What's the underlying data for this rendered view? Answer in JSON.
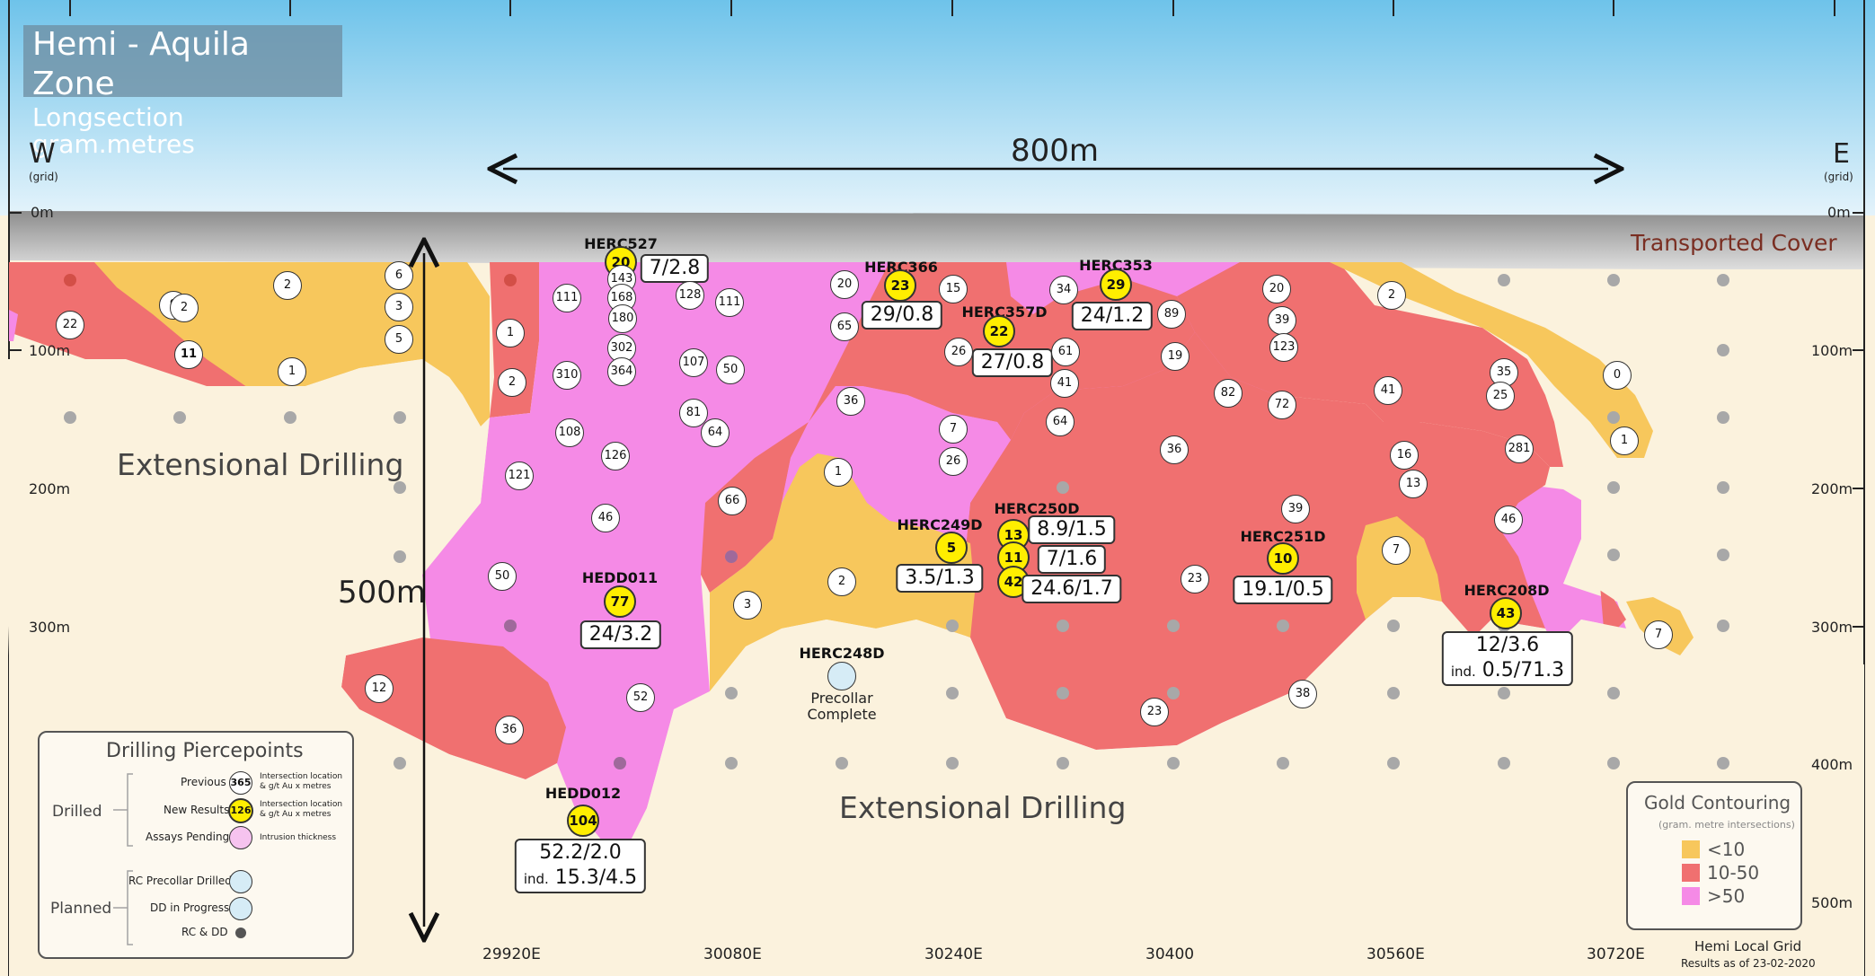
{
  "title": {
    "line1": "Hemi - Aquila Zone",
    "line2": "Longsection gram.metres"
  },
  "west": {
    "letter": "W",
    "sub": "(grid)"
  },
  "east": {
    "letter": "E",
    "sub": "(grid)"
  },
  "scale_horizontal": "800m",
  "scale_vertical": "500m",
  "transported_cover": "Transported Cover",
  "depth_labels": [
    "0m",
    "100m",
    "200m",
    "300m",
    "400m",
    "500m"
  ],
  "easting_labels": [
    "29920E",
    "30080E",
    "30240E",
    "30400",
    "30560E",
    "30720E"
  ],
  "extensional_left": "Extensional Drilling",
  "extensional_bottom": "Extensional Drilling",
  "grid_note": {
    "line1": "Hemi Local Grid",
    "line2": "Results as of 23-02-2020"
  },
  "holes": [
    {
      "name": "HERC527",
      "new": "20",
      "result": "7/2.8"
    },
    {
      "name": "HERC366",
      "new": "23",
      "result": "29/0.8"
    },
    {
      "name": "HERC357D",
      "new": "22",
      "result": "27/0.8"
    },
    {
      "name": "HERC353",
      "new": "29",
      "result": "24/1.2"
    },
    {
      "name": "HERC249D",
      "new": "5",
      "result": "3.5/1.3"
    },
    {
      "name": "HERC250D",
      "new1": "13",
      "new2": "11",
      "new3": "42",
      "result1": "8.9/1.5",
      "result2": "7/1.6",
      "result3": "24.6/1.7"
    },
    {
      "name": "HERC251D",
      "new": "10",
      "result": "19.1/0.5"
    },
    {
      "name": "HERC208D",
      "new": "43",
      "result": "12/3.6",
      "inc_label": "ind.",
      "inc": "0.5/71.3"
    },
    {
      "name": "HEDD011",
      "new": "77",
      "result": "24/3.2"
    },
    {
      "name": "HEDD012",
      "new": "104",
      "result": "52.2/2.0",
      "inc_label": "ind.",
      "inc": "15.3/4.5"
    },
    {
      "name": "HERC248D",
      "status1": "Precollar",
      "status2": "Complete"
    }
  ],
  "previous_values": [
    "22",
    "9",
    "2",
    "11",
    "2",
    "1",
    "6",
    "3",
    "5",
    "1",
    "2",
    "111",
    "143",
    "168",
    "180",
    "302",
    "364",
    "310",
    "108",
    "126",
    "121",
    "46",
    "50",
    "128",
    "111",
    "107",
    "50",
    "81",
    "64",
    "66",
    "3",
    "20",
    "65",
    "15",
    "34",
    "89",
    "26",
    "61",
    "41",
    "36",
    "7",
    "26",
    "1",
    "2",
    "64",
    "19",
    "82",
    "20",
    "39",
    "123",
    "72",
    "36",
    "41",
    "2",
    "35",
    "25",
    "0",
    "1",
    "281",
    "16",
    "13",
    "39",
    "46",
    "7",
    "23",
    "7",
    "12",
    "36",
    "52",
    "23",
    "38"
  ],
  "legend_piercepoints": {
    "title": "Drilling Piercepoints",
    "drilled": "Drilled",
    "planned": "Planned",
    "previous_label": "Previous",
    "previous_value": "365",
    "new_label": "New Results",
    "new_value": "126",
    "pending_label": "Assays Pending",
    "note1a": "Intersection location",
    "note1b": "& g/t Au x metres",
    "note2a": "Intersection location",
    "note2b": "& g/t Au x metres",
    "note3": "Intrusion thickness",
    "rc_pre": "RC Precollar Drilled",
    "dd_prog": "DD in Progress",
    "rc_dd": "RC & DD"
  },
  "legend_gold": {
    "title": "Gold Contouring",
    "subtitle": "(gram. metre intersections)",
    "items": [
      {
        "label": "<10",
        "color": "#f7c75c"
      },
      {
        "label": "10-50",
        "color": "#f07070"
      },
      {
        "label": ">50",
        "color": "#f58ae6"
      }
    ]
  },
  "colors": {
    "sky": "#a9dcf3",
    "cover": "#bdbdbd",
    "ground": "#fbf2dd",
    "low": "#f7c75c",
    "mid": "#f07070",
    "high": "#f58ae6",
    "new_result": "#ffee00",
    "planned": "#d6ecf6"
  }
}
